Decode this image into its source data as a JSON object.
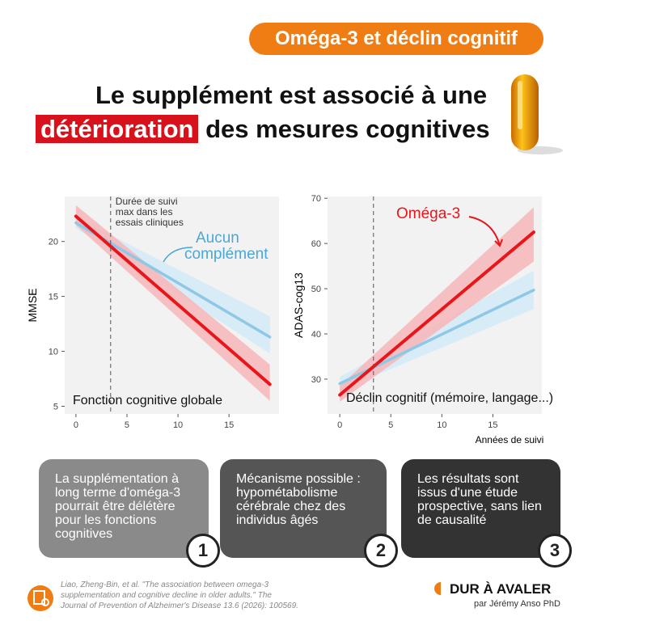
{
  "header": {
    "tag": "Oméga-3 et déclin cognitif",
    "title_line1": "Le supplément est associé à une",
    "title_highlight": "détérioration",
    "title_line2": "des mesures cognitives"
  },
  "chart_data": [
    {
      "type": "line",
      "ylabel": "MMSE",
      "panel_label": "Fonction cognitive globale",
      "xlim": [
        -1.1,
        19.9
      ],
      "ylim": [
        4.3,
        24.1
      ],
      "xticks": [
        0,
        5,
        10,
        15
      ],
      "yticks": [
        5,
        10,
        15,
        20
      ],
      "vline": 3.4,
      "vline_label": [
        "Durée de suivi",
        "max dans les",
        "essais cliniques"
      ],
      "series": [
        {
          "name": "Aucun complément",
          "color": "#8ec8e6",
          "band_color": "#d3ebf8",
          "x": [
            0,
            19
          ],
          "values": [
            21.7,
            11.3
          ],
          "lower": [
            21.2,
            9.8
          ],
          "upper": [
            22.2,
            13.2
          ]
        },
        {
          "color": "#e8161b",
          "band_color": "#f7b6b9",
          "x": [
            0,
            19
          ],
          "values": [
            22.3,
            7
          ],
          "lower": [
            21.5,
            5.5
          ],
          "upper": [
            23.3,
            8.8
          ]
        }
      ]
    },
    {
      "type": "line",
      "ylabel": "ADAS-cog13",
      "panel_label": "Déclin cognitif (mémoire, langage...)",
      "xlabel": "Années de suivi",
      "xlim": [
        -1.2,
        19.8
      ],
      "ylim": [
        22.3,
        70.4
      ],
      "xticks": [
        0,
        5,
        10,
        15
      ],
      "yticks": [
        30,
        40,
        50,
        60,
        70
      ],
      "vline": 3.3,
      "series": [
        {
          "color": "#8ec8e6",
          "band_color": "#d3ebf8",
          "x": [
            0,
            19
          ],
          "values": [
            29,
            49.7
          ],
          "lower": [
            27.5,
            45.5
          ],
          "upper": [
            30.5,
            54
          ]
        },
        {
          "name": "Oméga-3",
          "color": "#e8161b",
          "band_color": "#f7b6b9",
          "x": [
            0,
            19
          ],
          "values": [
            26.5,
            62.5
          ],
          "lower": [
            25,
            56
          ],
          "upper": [
            28.5,
            68
          ]
        }
      ]
    }
  ],
  "cards": [
    {
      "text": "La supplémentation à long terme d'oméga-3 pourrait être délétère pour les fonctions cognitives",
      "number": 1
    },
    {
      "text": "Mécanisme possible : hypométabolisme cérébrale chez des individus âgés",
      "number": 2
    },
    {
      "text": "Les résultats sont issus d'une étude prospective, sans lien de causalité",
      "number": 3
    }
  ],
  "footer": {
    "citation": [
      "Liao, Zheng-Bin, et al. \"The association between omega-3",
      "supplementation and cognitive decline in older adults.\" The",
      "Journal of Prevention of Alzheimer's Disease 13.6 (2026): 100569."
    ],
    "brand": "DUR À AVALER",
    "author": "par Jérémy Anso PhD"
  }
}
